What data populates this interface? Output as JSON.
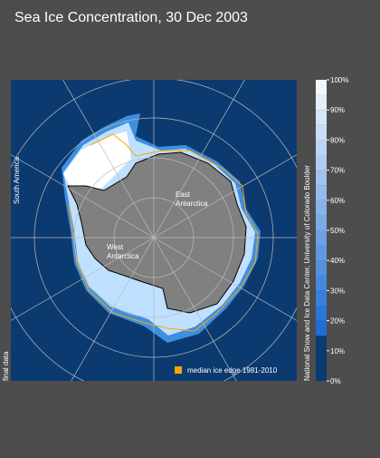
{
  "title": "Sea Ice Concentration, 30 Dec 2003",
  "map": {
    "labels": {
      "south_america": "South America",
      "east_antarctica": "East\nAntarctica",
      "west_antarctica": "West\nAntarctica"
    },
    "legend": "median ice edge 1981-2010",
    "status": "final data",
    "credit": "National Snow and Ice Data Center, University of Colorado Boulder"
  },
  "colorbar": {
    "ticks": [
      {
        "value": 0,
        "label": "0%"
      },
      {
        "value": 10,
        "label": "10%"
      },
      {
        "value": 20,
        "label": "20%"
      },
      {
        "value": 30,
        "label": "30%"
      },
      {
        "value": 40,
        "label": "40%"
      },
      {
        "value": 50,
        "label": "50%"
      },
      {
        "value": 60,
        "label": "60%"
      },
      {
        "value": 70,
        "label": "70%"
      },
      {
        "value": 80,
        "label": "80%"
      },
      {
        "value": 90,
        "label": "90%"
      },
      {
        "value": 100,
        "label": "100%"
      }
    ]
  }
}
